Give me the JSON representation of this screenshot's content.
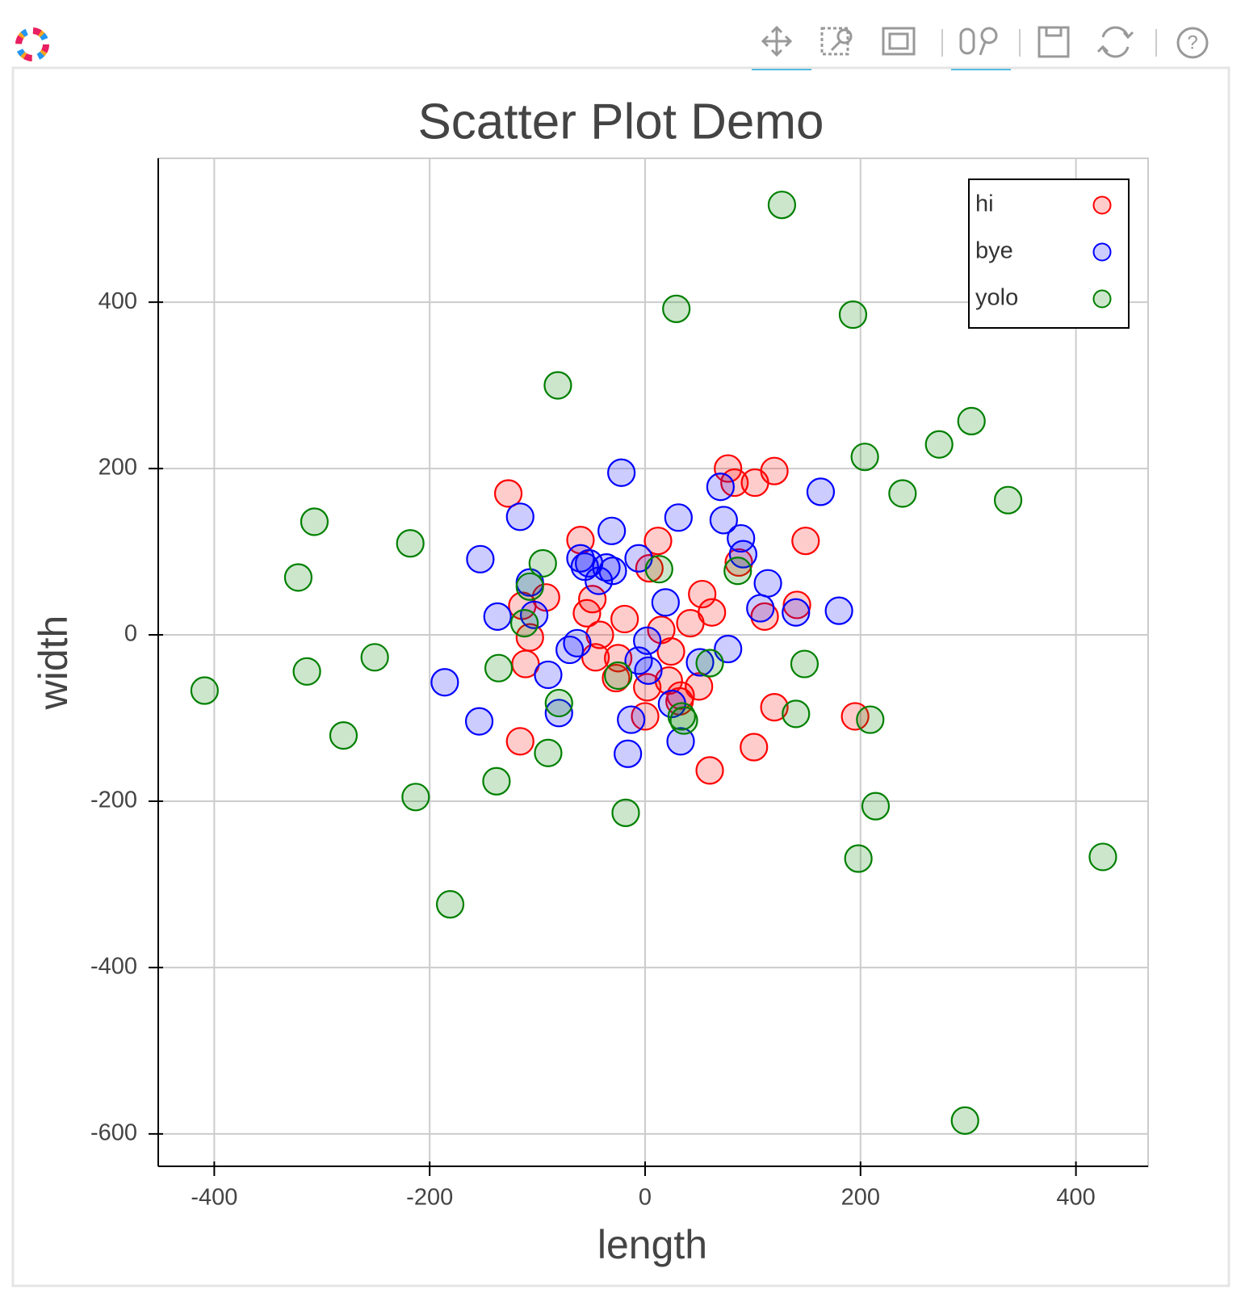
{
  "chart_data": {
    "type": "scatter",
    "title": "Scatter Plot Demo",
    "x_label": "length",
    "y_label": "width",
    "xlim": [
      -452,
      467
    ],
    "ylim": [
      -639,
      573
    ],
    "xticks": [
      -400,
      -200,
      0,
      200,
      400
    ],
    "yticks": [
      -600,
      -400,
      -200,
      0,
      200,
      400
    ],
    "grid": true,
    "legend": "top_right",
    "series": [
      {
        "name": "hi",
        "color": "#ff0000",
        "x": [
          -127,
          -60,
          77,
          83,
          102,
          120,
          149,
          12,
          4,
          -114,
          -92,
          -49,
          -54,
          -107,
          -111,
          -42,
          -19,
          15,
          53,
          62,
          42,
          141,
          111,
          87,
          24,
          -46,
          -25,
          -27,
          22,
          2,
          50,
          33,
          32,
          0,
          120,
          195,
          101,
          -116,
          60
        ],
        "values": [
          170,
          114,
          200,
          183,
          183,
          197,
          113,
          113,
          80,
          35,
          45,
          43,
          26,
          -3,
          -35,
          0,
          19,
          6,
          49,
          27,
          14,
          36,
          22,
          87,
          -20,
          -27,
          -28,
          -52,
          -55,
          -63,
          -62,
          -73,
          -80,
          -98,
          -87,
          -98,
          -135,
          -128,
          -163
        ]
      },
      {
        "name": "bye",
        "color": "#0000ff",
        "x": [
          -22,
          -116,
          31,
          70,
          163,
          -31,
          73,
          -153,
          -60,
          -52,
          -56,
          -36,
          -30,
          -43,
          -6,
          89,
          91,
          114,
          -107,
          -103,
          -137,
          19,
          107,
          140,
          180,
          -63,
          -70,
          2,
          77,
          -6,
          3,
          51,
          -90,
          -186,
          -80,
          -154,
          -13,
          25,
          33,
          -16
        ],
        "values": [
          195,
          142,
          141,
          178,
          172,
          125,
          138,
          91,
          92,
          86,
          82,
          81,
          77,
          65,
          92,
          116,
          97,
          62,
          63,
          24,
          22,
          39,
          32,
          27,
          29,
          -10,
          -18,
          -7,
          -17,
          -31,
          -43,
          -33,
          -48,
          -57,
          -94,
          -104,
          -102,
          -83,
          -128,
          -143
        ]
      },
      {
        "name": "yolo",
        "color": "#008000",
        "x": [
          127,
          29,
          193,
          -81,
          303,
          273,
          204,
          239,
          337,
          -307,
          -322,
          -218,
          -95,
          13,
          86,
          -107,
          -112,
          -409,
          -314,
          -251,
          -136,
          60,
          148,
          -25,
          -80,
          -280,
          34,
          36,
          140,
          209,
          -90,
          -138,
          -213,
          -18,
          214,
          198,
          425,
          -181,
          297
        ],
        "values": [
          517,
          392,
          385,
          300,
          257,
          229,
          214,
          170,
          162,
          136,
          69,
          110,
          86,
          79,
          77,
          58,
          14,
          -67,
          -44,
          -27,
          -40,
          -34,
          -35,
          -49,
          -82,
          -121,
          -98,
          -103,
          -95,
          -102,
          -142,
          -176,
          -195,
          -214,
          -206,
          -269,
          -267,
          -324,
          -584
        ]
      }
    ]
  }
}
